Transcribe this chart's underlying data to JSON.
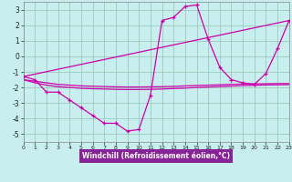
{
  "xlabel": "Windchill (Refroidissement éolien,°C)",
  "bg_color": "#c8eef0",
  "grid_color": "#99ccbb",
  "line_color": "#cc00aa",
  "xlabel_bg": "#882299",
  "xlabel_fg": "#ffffff",
  "xlim": [
    0,
    23
  ],
  "ylim": [
    -5.5,
    3.5
  ],
  "xticks": [
    0,
    1,
    2,
    3,
    4,
    5,
    6,
    7,
    8,
    9,
    10,
    11,
    12,
    13,
    14,
    15,
    16,
    17,
    18,
    19,
    20,
    21,
    22,
    23
  ],
  "yticks": [
    -5,
    -4,
    -3,
    -2,
    -1,
    0,
    1,
    2,
    3
  ],
  "series0_x": [
    0,
    1,
    2,
    3,
    4,
    5,
    6,
    7,
    8,
    9,
    10,
    11,
    12,
    13,
    14,
    15,
    16,
    17,
    18,
    19,
    20,
    21,
    22,
    23
  ],
  "series0_y": [
    -1.3,
    -1.5,
    -2.3,
    -2.3,
    -2.8,
    -3.3,
    -3.8,
    -4.3,
    -4.3,
    -4.8,
    -4.7,
    -2.5,
    2.3,
    2.5,
    3.2,
    3.3,
    1.1,
    -0.7,
    -1.5,
    -1.7,
    -1.8,
    -1.1,
    0.5,
    2.3
  ],
  "series1_x": [
    0,
    23
  ],
  "series1_y": [
    -1.3,
    2.3
  ],
  "series2_x": [
    0,
    1,
    2,
    3,
    4,
    5,
    6,
    7,
    8,
    9,
    10,
    11,
    12,
    13,
    14,
    15,
    16,
    17,
    18,
    19,
    20,
    21,
    22,
    23
  ],
  "series2_y": [
    -1.5,
    -1.6,
    -1.7,
    -1.8,
    -1.85,
    -1.9,
    -1.92,
    -1.94,
    -1.96,
    -1.97,
    -1.97,
    -1.96,
    -1.95,
    -1.93,
    -1.9,
    -1.87,
    -1.85,
    -1.83,
    -1.8,
    -1.78,
    -1.77,
    -1.76,
    -1.75,
    -1.75
  ],
  "series3_x": [
    0,
    1,
    2,
    3,
    4,
    5,
    6,
    7,
    8,
    9,
    10,
    11,
    12,
    13,
    14,
    15,
    16,
    17,
    18,
    19,
    20,
    21,
    22,
    23
  ],
  "series3_y": [
    -1.5,
    -1.7,
    -1.85,
    -1.95,
    -2.0,
    -2.05,
    -2.08,
    -2.1,
    -2.12,
    -2.13,
    -2.13,
    -2.12,
    -2.1,
    -2.07,
    -2.04,
    -2.0,
    -1.97,
    -1.94,
    -1.91,
    -1.88,
    -1.86,
    -1.84,
    -1.83,
    -1.82
  ]
}
